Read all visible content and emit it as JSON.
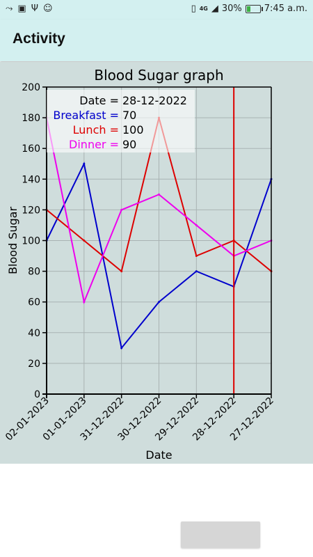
{
  "status": {
    "battery": "30%",
    "battery_level": 0.3,
    "time": "7:45 a.m.",
    "network": "4G"
  },
  "app_bar": {
    "title": "Activity"
  },
  "chart_data": {
    "type": "line",
    "title": "Blood Sugar graph",
    "xlabel": "Date",
    "ylabel": "Blood Sugar",
    "categories": [
      "02-01-2023",
      "01-01-2023",
      "31-12-2022",
      "30-12-2022",
      "29-12-2022",
      "28-12-2022",
      "27-12-2022"
    ],
    "ylim": [
      0,
      200
    ],
    "yticks": [
      0,
      20,
      40,
      60,
      80,
      100,
      120,
      140,
      160,
      180,
      200
    ],
    "grid": true,
    "series": [
      {
        "name": "Breakfast",
        "color": "#0000cc",
        "values": [
          100,
          150,
          30,
          60,
          80,
          70,
          140
        ]
      },
      {
        "name": "Lunch",
        "color": "#dd0000",
        "values": [
          120,
          100,
          80,
          180,
          90,
          100,
          80
        ]
      },
      {
        "name": "Dinner",
        "color": "#ee00ee",
        "values": [
          180,
          60,
          120,
          130,
          110,
          90,
          100
        ]
      }
    ],
    "cursor": {
      "category": "28-12-2022",
      "color": "#dd0000",
      "tooltip": {
        "date_label": "Date",
        "date_value": "28-12-2022",
        "rows": [
          {
            "label": "Breakfast",
            "value": "70",
            "color": "#0000cc"
          },
          {
            "label": "Lunch",
            "value": "100",
            "color": "#dd0000"
          },
          {
            "label": "Dinner",
            "value": "90",
            "color": "#ee00ee"
          }
        ]
      }
    }
  }
}
